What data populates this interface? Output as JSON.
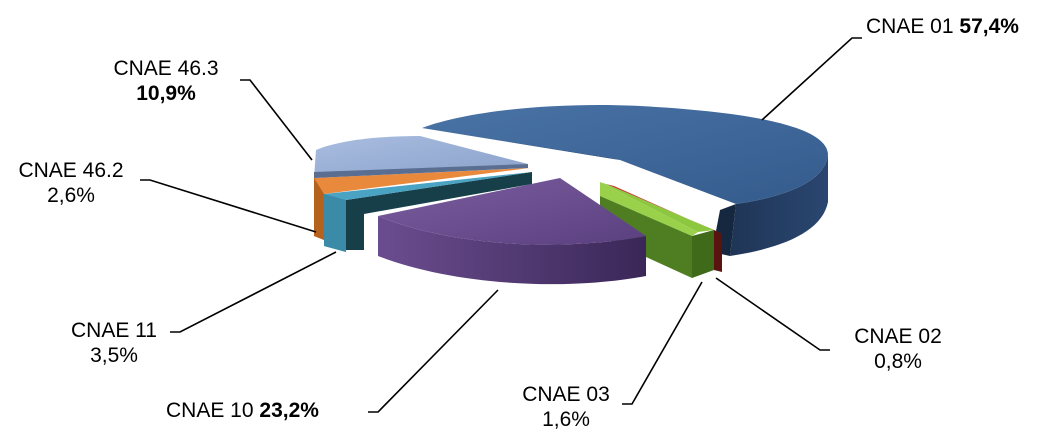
{
  "chart_data": {
    "type": "pie",
    "categories": [
      "CNAE 01",
      "CNAE 02",
      "CNAE 03",
      "CNAE 10",
      "CNAE 11",
      "CNAE 46.2",
      "CNAE 46.3"
    ],
    "values": [
      57.4,
      0.8,
      1.6,
      23.2,
      3.5,
      2.6,
      10.9
    ],
    "value_labels": [
      "57,4%",
      "0,8%",
      "1,6%",
      "23,2%",
      "3,5%",
      "2,6%",
      "10,9%"
    ],
    "colors": [
      "#3B6496",
      "#C0392B",
      "#8DC63F",
      "#6B4E8F",
      "#4BA3C3",
      "#E8893C",
      "#9AAFD4"
    ],
    "style": "3d-exploded",
    "legend": "none"
  }
}
